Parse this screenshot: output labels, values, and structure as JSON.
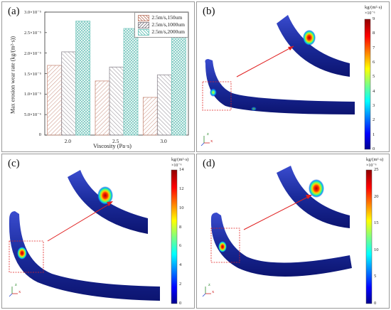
{
  "panel_labels": {
    "a": "(a)",
    "b": "(b)",
    "c": "(c)",
    "d": "(d)"
  },
  "chart_data": {
    "type": "bar",
    "xlabel": "Viscosity (Pa·s)",
    "ylabel": "Max erosion wear rate (kg/(m²·s))",
    "categories": [
      "2.0",
      "2.5",
      "3.0"
    ],
    "ylim": [
      0,
      3e-05
    ],
    "yticks": [
      0,
      5e-06,
      1e-05,
      1.5e-05,
      2e-05,
      2.5e-05,
      3e-05
    ],
    "ytick_labels": [
      "0",
      "5.0×10⁻⁶",
      "1.0×10⁻⁵",
      "1.5×10⁻⁵",
      "2.0×10⁻⁵",
      "2.5×10⁻⁵",
      "3.0×10⁻⁵"
    ],
    "series": [
      {
        "name": "2.5m/s,150um",
        "color": "#c98f7e",
        "values": [
          1.7e-05,
          1.32e-05,
          9.2e-06
        ]
      },
      {
        "name": "2.5m/s,1000um",
        "color": "#8f8a92",
        "values": [
          2.03e-05,
          1.66e-05,
          1.47e-05
        ]
      },
      {
        "name": "2.5m/s,2000um",
        "color": "#79c8bf",
        "values": [
          2.78e-05,
          2.6e-05,
          2.52e-05
        ]
      }
    ],
    "legend_position": "top-right",
    "grid": false
  },
  "colorbars": {
    "b": {
      "unit": "kg/(m²·s)",
      "exponent": "×10⁻⁶",
      "ticks": [
        "9",
        "8",
        "7",
        "6",
        "5",
        "4",
        "3",
        "2",
        "1",
        "0"
      ]
    },
    "c": {
      "unit": "kg/(m²·s)",
      "exponent": "×10⁻⁶",
      "ticks": [
        "14",
        "12",
        "10",
        "8",
        "6",
        "4",
        "2",
        "0"
      ]
    },
    "d": {
      "unit": "kg/(m²·s)",
      "exponent": "×10⁻⁶",
      "ticks": [
        "25",
        "20",
        "15",
        "10",
        "5",
        "0"
      ]
    }
  },
  "colors": {
    "jet_low": "#00008f",
    "jet_high": "#8f0000",
    "arrow": "#e02020",
    "pipe": "#1a2a9a"
  },
  "axis_triad": {
    "z": "z",
    "x": "x"
  }
}
